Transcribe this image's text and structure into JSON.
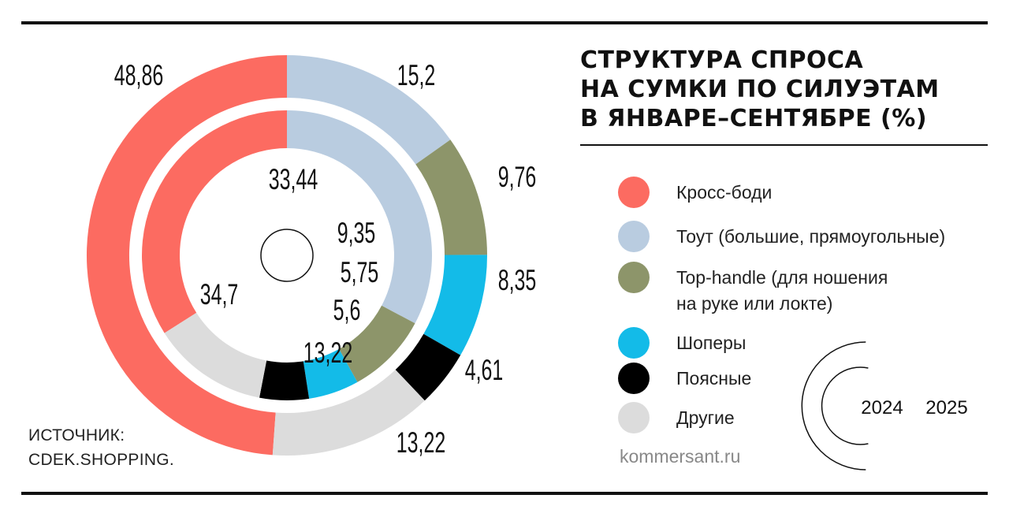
{
  "title_lines": [
    "СТРУКТУРА СПРОСА",
    "НА СУМКИ ПО СИЛУЭТАМ",
    "В ЯНВАРЕ–СЕНТЯБРЕ (%)"
  ],
  "source_text": "ИСТОЧНИК:\nCDEK.SHOPPING.",
  "site": "kommersant.ru",
  "colors": {
    "cross_body": "#fc6b61",
    "tote": "#b9cce0",
    "top_handle": "#8d956a",
    "shoppers": "#13bbe8",
    "belt": "#000000",
    "other": "#dcdcdc"
  },
  "legend": [
    {
      "label": "Кросс-боди",
      "color": "#fc6b61"
    },
    {
      "label": "Тоут (большие, прямоугольные)",
      "color": "#b9cce0"
    },
    {
      "label": "Top-handle (для ношения\nна руке или локте)",
      "color": "#8d956a"
    },
    {
      "label": "Шоперы",
      "color": "#13bbe8"
    },
    {
      "label": "Поясные",
      "color": "#000000"
    },
    {
      "label": "Другие",
      "color": "#dcdcdc"
    }
  ],
  "chart_data": {
    "type": "pie",
    "variant": "concentric-donut",
    "title": "СТРУКТУРА СПРОСА НА СУМКИ ПО СИЛУЭТАМ В ЯНВАРЕ–СЕНТЯБРЕ (%)",
    "categories": [
      "Кросс-боди",
      "Тоут (большие, прямоугольные)",
      "Top-handle (для ношения на руке или локте)",
      "Шоперы",
      "Поясные",
      "Другие"
    ],
    "series": [
      {
        "name": "2024",
        "values": [
          34.7,
          33.44,
          9.35,
          5.75,
          5.6,
          13.22
        ],
        "labels": [
          "34,7",
          "33,44",
          "9,35",
          "5,75",
          "5,6",
          "13,22"
        ]
      },
      {
        "name": "2025",
        "values": [
          48.86,
          15.2,
          9.76,
          8.35,
          4.61,
          13.22
        ],
        "labels": [
          "48,86",
          "15,2",
          "9,76",
          "8,35",
          "4,61",
          "13,22"
        ]
      }
    ],
    "legend_position": "right"
  }
}
